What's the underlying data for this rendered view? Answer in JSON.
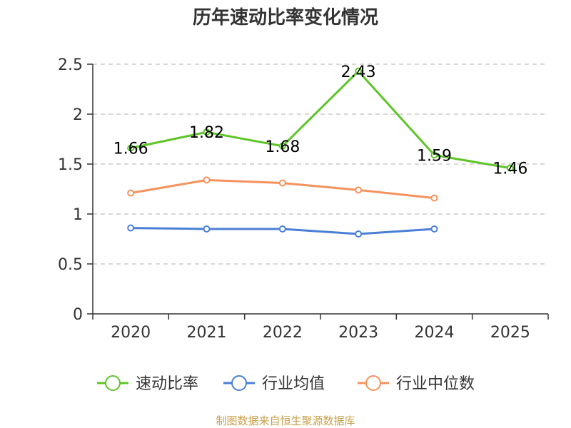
{
  "chart_data": {
    "type": "line",
    "title": "历年速动比率变化情况",
    "categories": [
      "2020",
      "2021",
      "2022",
      "2023",
      "2024",
      "2025"
    ],
    "ylim": [
      0,
      2.5
    ],
    "yticks": [
      0,
      0.5,
      1,
      1.5,
      2,
      2.5
    ],
    "grid": true,
    "legend_position": "bottom",
    "series": [
      {
        "name": "速动比率",
        "color": "#5ec427",
        "values": [
          1.66,
          1.82,
          1.68,
          2.43,
          1.59,
          1.46
        ],
        "show_labels": true
      },
      {
        "name": "行业均值",
        "color": "#4a7fd6",
        "values": [
          0.86,
          0.85,
          0.85,
          0.8,
          0.85,
          null
        ],
        "show_labels": false
      },
      {
        "name": "行业中位数",
        "color": "#f5925e",
        "values": [
          1.21,
          1.34,
          1.31,
          1.24,
          1.16,
          null
        ],
        "show_labels": false
      }
    ]
  },
  "source": "制图数据来自恒生聚源数据库"
}
